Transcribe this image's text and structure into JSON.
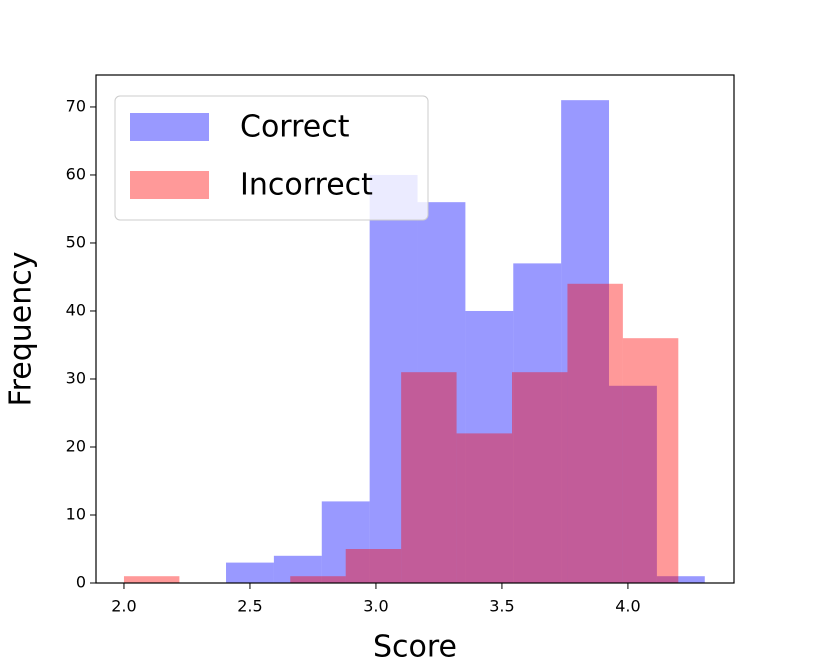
{
  "chart_data": {
    "type": "histogram",
    "x_label": "Score",
    "y_label": "Frequency",
    "series": [
      {
        "name": "Correct",
        "color": "#0000ff",
        "alpha": 0.4,
        "bins": [
          2.405,
          2.595,
          2.785,
          2.975,
          3.165,
          3.355,
          3.545,
          3.735,
          3.925,
          4.115,
          4.305
        ],
        "values": [
          3,
          4,
          12,
          60,
          56,
          40,
          47,
          71,
          29,
          1
        ]
      },
      {
        "name": "Incorrect",
        "color": "#ff0000",
        "alpha": 0.4,
        "bins": [
          2.0,
          2.22,
          2.44,
          2.66,
          2.88,
          3.1,
          3.32,
          3.54,
          3.76,
          3.98,
          4.2
        ],
        "values": [
          1,
          0,
          0,
          1,
          5,
          31,
          22,
          31,
          44,
          36
        ]
      }
    ],
    "xlim": [
      1.889,
      4.421
    ],
    "ylim": [
      0,
      74.7
    ],
    "xticks": [
      {
        "value": 2.0,
        "label": "2.0"
      },
      {
        "value": 2.5,
        "label": "2.5"
      },
      {
        "value": 3.0,
        "label": "3.0"
      },
      {
        "value": 3.5,
        "label": "3.5"
      },
      {
        "value": 4.0,
        "label": "4.0"
      }
    ],
    "yticks": [
      0,
      10,
      20,
      30,
      40,
      50,
      60,
      70
    ],
    "legend": "upper left",
    "grid": false
  }
}
